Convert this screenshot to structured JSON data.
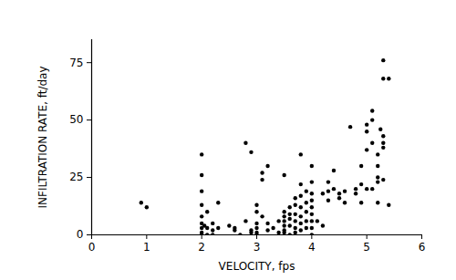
{
  "chart_data": {
    "type": "scatter",
    "xlabel": "VELOCITY, fps",
    "ylabel": "INFILTRATION RATE, ft/day",
    "x": [
      0.9,
      1.0,
      2.0,
      2.0,
      2.0,
      2.0,
      2.0,
      2.0,
      2.0,
      2.0,
      2.0,
      2.05,
      2.1,
      2.1,
      2.1,
      2.2,
      2.2,
      2.2,
      2.3,
      2.3,
      2.5,
      2.6,
      2.6,
      2.7,
      2.8,
      2.9,
      2.8,
      2.9,
      2.9,
      3.0,
      3.0,
      3.0,
      3.0,
      3.0,
      3.0,
      3.1,
      3.1,
      3.2,
      3.1,
      3.2,
      3.2,
      3.3,
      3.4,
      3.4,
      3.5,
      3.5,
      3.5,
      3.5,
      3.5,
      3.5,
      3.5,
      3.6,
      3.6,
      3.6,
      3.6,
      3.6,
      3.7,
      3.7,
      3.7,
      3.7,
      3.7,
      3.7,
      3.8,
      3.8,
      3.8,
      3.8,
      3.8,
      3.8,
      3.8,
      3.9,
      3.9,
      3.9,
      3.9,
      3.9,
      4.0,
      4.0,
      4.0,
      4.0,
      4.0,
      4.0,
      4.0,
      4.0,
      4.0,
      4.1,
      4.2,
      4.2,
      4.3,
      4.3,
      4.3,
      4.4,
      4.4,
      4.5,
      4.5,
      4.6,
      4.6,
      4.7,
      4.8,
      4.8,
      4.9,
      4.9,
      4.9,
      5.0,
      5.0,
      5.0,
      5.0,
      5.1,
      5.1,
      5.1,
      5.1,
      5.2,
      5.2,
      5.2,
      5.2,
      5.2,
      5.25,
      5.3,
      5.3,
      5.3,
      5.3,
      5.3,
      5.3,
      5.4,
      5.4
    ],
    "values": [
      14,
      12,
      35,
      26,
      19,
      13,
      8,
      5,
      3,
      1,
      0,
      4,
      10,
      3,
      0,
      5,
      2,
      0,
      14,
      3,
      4,
      3,
      2,
      0,
      40,
      36,
      6,
      2,
      1,
      13,
      10,
      5,
      3,
      1,
      0,
      27,
      24,
      30,
      8,
      5,
      2,
      3,
      6,
      1,
      26,
      10,
      8,
      6,
      4,
      2,
      1,
      12,
      9,
      7,
      4,
      0,
      16,
      13,
      9,
      6,
      3,
      1,
      35,
      22,
      17,
      12,
      8,
      5,
      2,
      19,
      14,
      10,
      6,
      3,
      30,
      23,
      18,
      15,
      12,
      9,
      6,
      3,
      0,
      6,
      4,
      18,
      23,
      19,
      15,
      28,
      20,
      16,
      18,
      14,
      19,
      47,
      18,
      20,
      22,
      14,
      30,
      20,
      37,
      48,
      45,
      50,
      20,
      40,
      54,
      23,
      14,
      25,
      30,
      35,
      46,
      43,
      40,
      38,
      76,
      68,
      24,
      68,
      13
    ],
    "color": "#000000",
    "marker": "circle",
    "xlim": [
      0,
      6
    ],
    "ylim": [
      0,
      85
    ],
    "xticks": [
      0,
      1,
      2,
      3,
      4,
      5,
      6
    ],
    "yticks": [
      0,
      25,
      50,
      75
    ]
  }
}
